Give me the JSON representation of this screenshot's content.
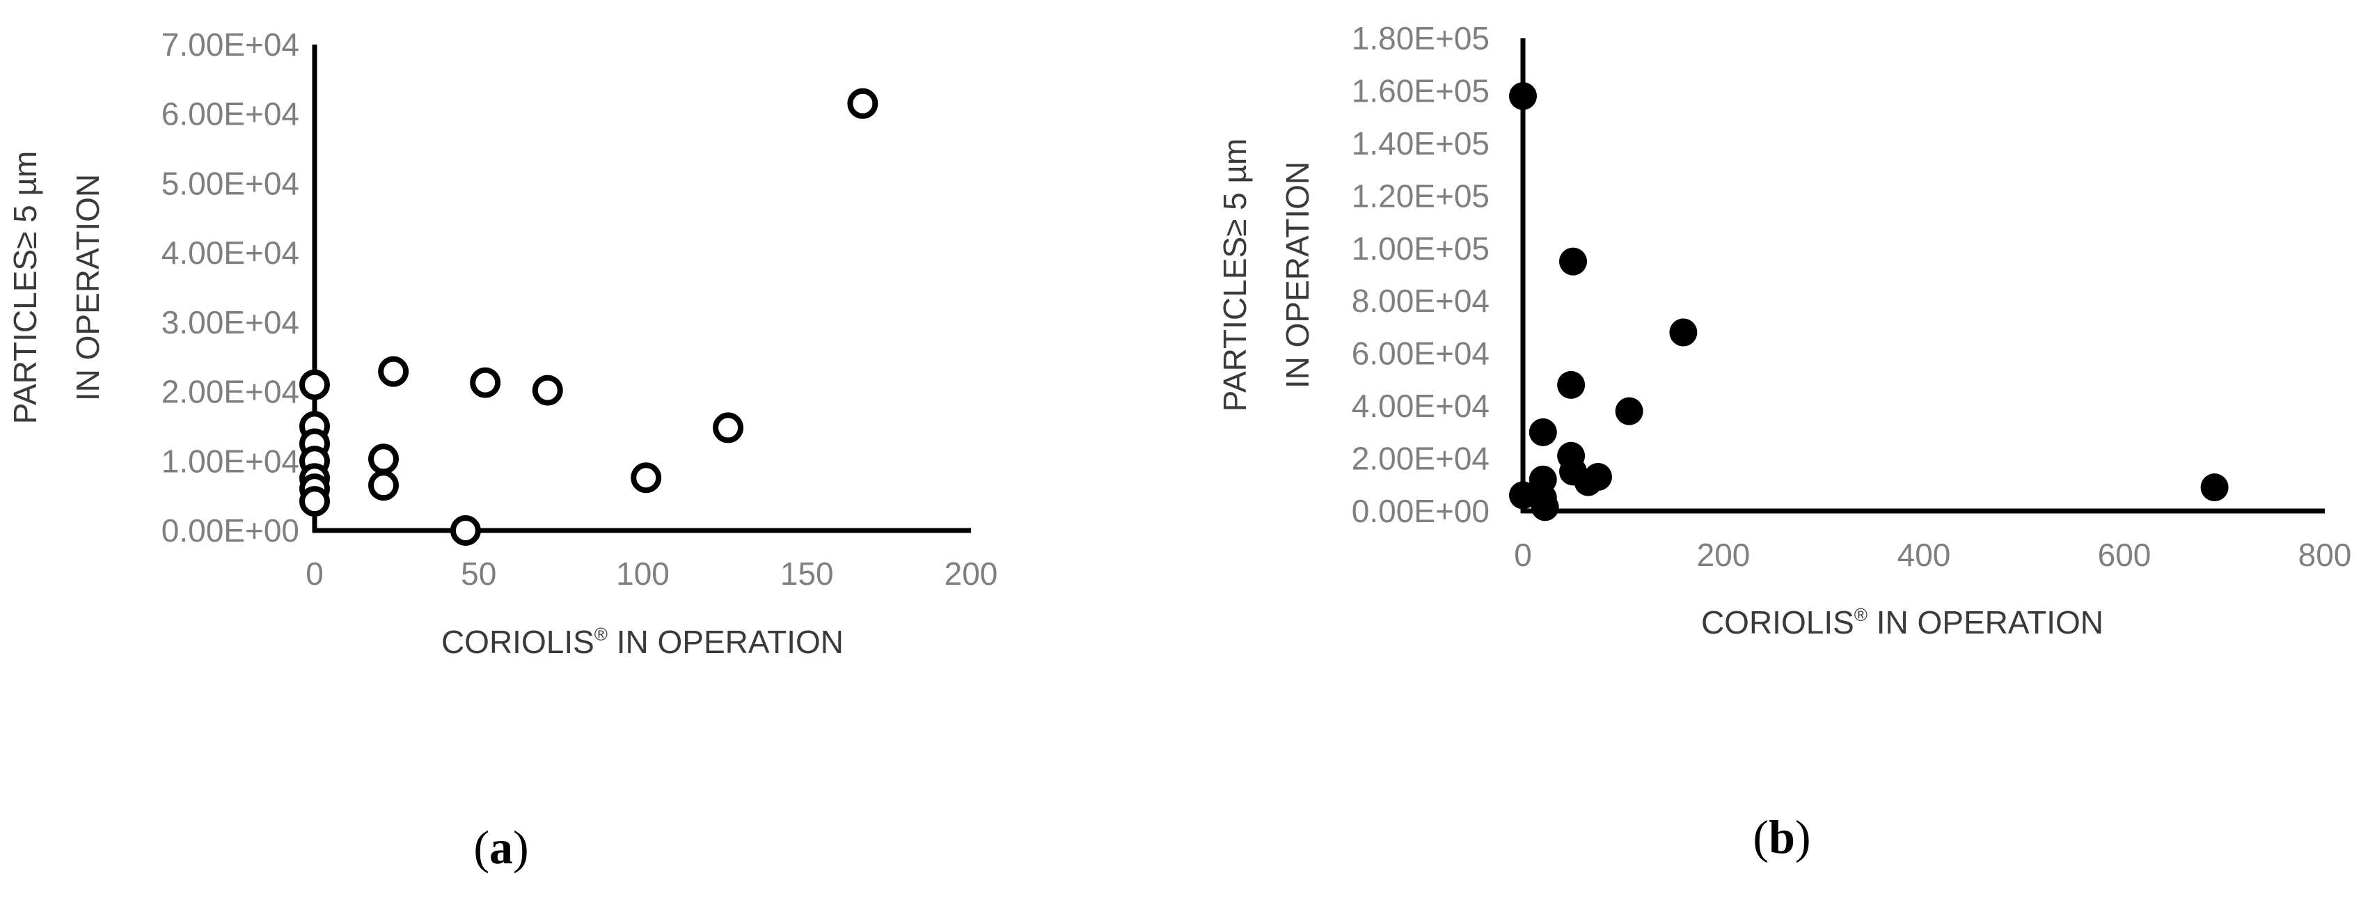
{
  "chart_data": [
    {
      "id": "a",
      "type": "scatter",
      "panel_label": "a",
      "xlabel": "CORIOLIS",
      "xlabel_sup": "®",
      "xlabel_rest": " IN OPERATION",
      "ylabel_line1": "PARTICLES≥ 5 µm",
      "ylabel_line2": "IN OPERATION",
      "xlim": [
        0,
        200
      ],
      "ylim": [
        0,
        70000
      ],
      "x_ticks": [
        0,
        50,
        100,
        150,
        200
      ],
      "x_tick_labels": [
        "0",
        "50",
        "100",
        "150",
        "200"
      ],
      "y_ticks": [
        0,
        10000,
        20000,
        30000,
        40000,
        50000,
        60000,
        70000
      ],
      "y_tick_labels": [
        "0.00E+00",
        "1.00E+04",
        "2.00E+04",
        "3.00E+04",
        "4.00E+04",
        "5.00E+04",
        "6.00E+04",
        "7.00E+04"
      ],
      "marker": "open-circle",
      "marker_color": "#000000",
      "grid": false,
      "points": [
        {
          "x": 0,
          "y": 21000
        },
        {
          "x": 0,
          "y": 15000
        },
        {
          "x": 0,
          "y": 12500
        },
        {
          "x": 0,
          "y": 10000
        },
        {
          "x": 0,
          "y": 7500
        },
        {
          "x": 0,
          "y": 6000
        },
        {
          "x": 0,
          "y": 4200
        },
        {
          "x": 21,
          "y": 10300
        },
        {
          "x": 21,
          "y": 6500
        },
        {
          "x": 24,
          "y": 22900
        },
        {
          "x": 46,
          "y": 0
        },
        {
          "x": 52,
          "y": 21300
        },
        {
          "x": 71,
          "y": 20200
        },
        {
          "x": 101,
          "y": 7600
        },
        {
          "x": 126,
          "y": 14800
        },
        {
          "x": 167,
          "y": 61500
        }
      ]
    },
    {
      "id": "b",
      "type": "scatter",
      "panel_label": "b",
      "xlabel": "CORIOLIS",
      "xlabel_sup": "®",
      "xlabel_rest": " IN OPERATION",
      "ylabel_line1": "PARTICLES≥ 5 µm",
      "ylabel_line2": "IN OPERATION",
      "xlim": [
        0,
        800
      ],
      "ylim": [
        0,
        180000
      ],
      "x_ticks": [
        0,
        200,
        400,
        600,
        800
      ],
      "x_tick_labels": [
        "0",
        "200",
        "400",
        "600",
        "800"
      ],
      "y_ticks": [
        0,
        20000,
        40000,
        60000,
        80000,
        100000,
        120000,
        140000,
        160000,
        180000
      ],
      "y_tick_labels": [
        "0.00E+00",
        "2.00E+04",
        "4.00E+04",
        "6.00E+04",
        "8.00E+04",
        "1.00E+05",
        "1.20E+05",
        "1.40E+05",
        "1.60E+05",
        "1.80E+05"
      ],
      "marker": "filled-circle",
      "marker_color": "#000000",
      "grid": false,
      "points": [
        {
          "x": 0,
          "y": 158000
        },
        {
          "x": 0,
          "y": 6000
        },
        {
          "x": 20,
          "y": 30000
        },
        {
          "x": 20,
          "y": 12000
        },
        {
          "x": 20,
          "y": 5000
        },
        {
          "x": 22,
          "y": 1500
        },
        {
          "x": 48,
          "y": 21000
        },
        {
          "x": 48,
          "y": 48000
        },
        {
          "x": 50,
          "y": 95000
        },
        {
          "x": 50,
          "y": 15000
        },
        {
          "x": 65,
          "y": 11000
        },
        {
          "x": 75,
          "y": 13000
        },
        {
          "x": 106,
          "y": 38000
        },
        {
          "x": 160,
          "y": 68000
        },
        {
          "x": 690,
          "y": 9000
        }
      ]
    }
  ]
}
